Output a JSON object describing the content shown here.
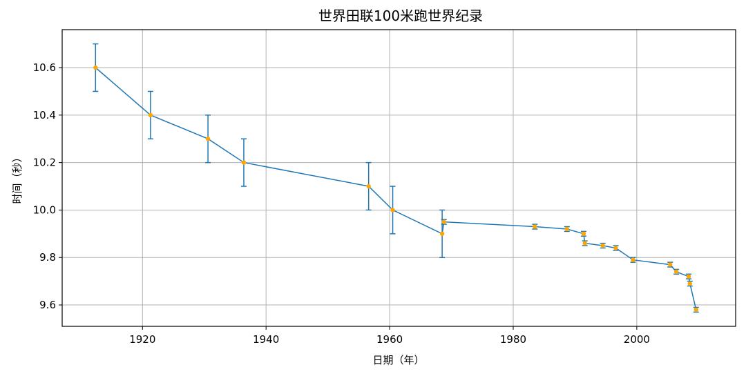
{
  "chart_data": {
    "type": "line",
    "title": "世界田联100米跑世界纪录",
    "xlabel": "日期（年）",
    "ylabel": "时间（秒）",
    "xlim": [
      1907,
      2016
    ],
    "ylim": [
      9.51,
      10.76
    ],
    "x_ticks": [
      1920,
      1940,
      1960,
      1980,
      2000
    ],
    "y_ticks": [
      9.6,
      9.8,
      10.0,
      10.2,
      10.4,
      10.6
    ],
    "y_tick_labels": [
      "9.6",
      "9.8",
      "10.0",
      "10.2",
      "10.4",
      "10.6"
    ],
    "grid": true,
    "line_color": "#1f77b4",
    "marker_color": "#ffa500",
    "series": [
      {
        "points": [
          {
            "x": 1912.4,
            "y": 10.6,
            "err": 0.1
          },
          {
            "x": 1921.3,
            "y": 10.4,
            "err": 0.1
          },
          {
            "x": 1930.6,
            "y": 10.3,
            "err": 0.1
          },
          {
            "x": 1936.4,
            "y": 10.2,
            "err": 0.1
          },
          {
            "x": 1956.6,
            "y": 10.1,
            "err": 0.1
          },
          {
            "x": 1960.5,
            "y": 10.0,
            "err": 0.1
          },
          {
            "x": 1968.5,
            "y": 9.9,
            "err": 0.1
          },
          {
            "x": 1968.8,
            "y": 9.95,
            "err": 0.01
          },
          {
            "x": 1983.5,
            "y": 9.93,
            "err": 0.01
          },
          {
            "x": 1988.7,
            "y": 9.92,
            "err": 0.01
          },
          {
            "x": 1991.4,
            "y": 9.9,
            "err": 0.01
          },
          {
            "x": 1991.6,
            "y": 9.86,
            "err": 0.01
          },
          {
            "x": 1994.5,
            "y": 9.85,
            "err": 0.01
          },
          {
            "x": 1996.6,
            "y": 9.84,
            "err": 0.01
          },
          {
            "x": 1999.4,
            "y": 9.79,
            "err": 0.01
          },
          {
            "x": 2005.4,
            "y": 9.77,
            "err": 0.01
          },
          {
            "x": 2006.4,
            "y": 9.74,
            "err": 0.01
          },
          {
            "x": 2008.4,
            "y": 9.72,
            "err": 0.01
          },
          {
            "x": 2008.6,
            "y": 9.69,
            "err": 0.01
          },
          {
            "x": 2009.6,
            "y": 9.58,
            "err": 0.01
          }
        ]
      }
    ]
  }
}
